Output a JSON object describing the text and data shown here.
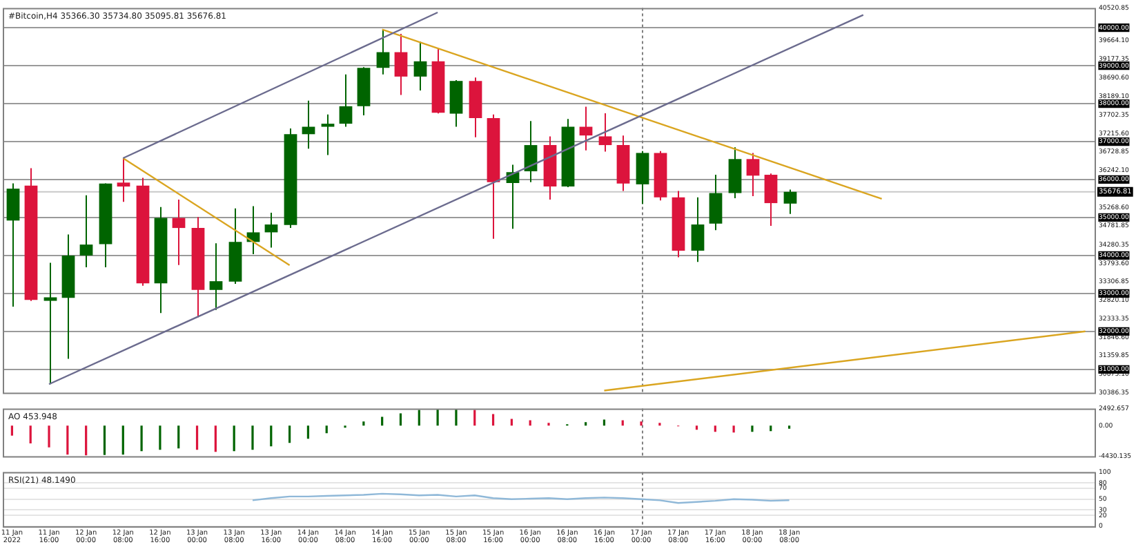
{
  "chart_data": [
    {
      "type": "candlestick",
      "title": "#Bitcoin,H4 35366.30 35734.80 35095.81 35676.81",
      "categories": [
        "11 Jan 2022",
        null,
        "11 Jan 16:00",
        null,
        "12 Jan 00:00",
        null,
        "12 Jan 08:00",
        null,
        "12 Jan 16:00",
        null,
        "13 Jan 00:00",
        null,
        "13 Jan 08:00",
        null,
        "13 Jan 16:00",
        null,
        "14 Jan 00:00",
        null,
        "14 Jan 08:00",
        null,
        "14 Jan 16:00",
        null,
        "15 Jan 00:00",
        null,
        "15 Jan 08:00",
        null,
        "15 Jan 16:00",
        null,
        "16 Jan 00:00",
        null,
        "16 Jan 08:00",
        null,
        "16 Jan 16:00",
        null,
        "17 Jan 00:00",
        null,
        "17 Jan 08:00",
        null,
        "17 Jan 16:00",
        null,
        "18 Jan 00:00",
        null,
        "18 Jan 08:00",
        null,
        null,
        null,
        null,
        null,
        null,
        null,
        null,
        null,
        null,
        null,
        null,
        null,
        null,
        null,
        null
      ],
      "ohlc": [
        [
          34920,
          35900,
          32650,
          35760
        ],
        [
          35840,
          36299,
          32800,
          32828
        ],
        [
          32805,
          33805,
          30609,
          32897
        ],
        [
          32885,
          34552,
          31276,
          34000
        ],
        [
          34000,
          35586,
          33690,
          34287
        ],
        [
          34299,
          35900,
          33690,
          35897
        ],
        [
          35920,
          36563,
          35414,
          35816
        ],
        [
          35839,
          36046,
          33200,
          33264
        ],
        [
          33264,
          35276,
          32483,
          34989
        ],
        [
          34989,
          35471,
          33747,
          34724
        ],
        [
          34724,
          35011,
          32368,
          33092
        ],
        [
          33092,
          34322,
          32563,
          33322
        ],
        [
          33310,
          35241,
          33253,
          34356
        ],
        [
          34356,
          35299,
          34034,
          34609
        ],
        [
          34609,
          35126,
          34207,
          34816
        ],
        [
          34805,
          37345,
          34724,
          37195
        ],
        [
          37195,
          38080,
          36816,
          37391
        ],
        [
          37391,
          37713,
          36644,
          37471
        ],
        [
          37471,
          38770,
          37391,
          37931
        ],
        [
          37931,
          38960,
          37690,
          38943
        ],
        [
          38943,
          39954,
          38770,
          39356
        ],
        [
          39356,
          39839,
          38230,
          38713
        ],
        [
          38713,
          39632,
          38345,
          39115
        ],
        [
          39115,
          39437,
          37740,
          37759
        ],
        [
          37736,
          38620,
          37391,
          38598
        ],
        [
          38598,
          38690,
          37115,
          37621
        ],
        [
          37621,
          37713,
          34437,
          35931
        ],
        [
          35908,
          36391,
          34701,
          36195
        ],
        [
          36218,
          37540,
          35931,
          36908
        ],
        [
          36908,
          37138,
          35471,
          35816
        ],
        [
          35816,
          37598,
          35800,
          37391
        ],
        [
          37391,
          37920,
          36770,
          37161
        ],
        [
          37138,
          37747,
          36736,
          36908
        ],
        [
          36908,
          37161,
          35701,
          35897
        ],
        [
          35874,
          36750,
          35356,
          36701
        ],
        [
          36701,
          36750,
          35450,
          35529
        ],
        [
          35529,
          35701,
          33954,
          34126
        ],
        [
          34126,
          35529,
          33828,
          34816
        ],
        [
          34839,
          36126,
          34667,
          35644
        ],
        [
          35644,
          36851,
          35506,
          36540
        ],
        [
          36540,
          36701,
          35563,
          36103
        ],
        [
          36126,
          36160,
          34782,
          35379
        ],
        [
          35366.3,
          35734.8,
          35095.81,
          35676.81
        ],
        null,
        null,
        null,
        null,
        null,
        null,
        null,
        null,
        null,
        null,
        null,
        null,
        null,
        null,
        null,
        null
      ],
      "colors": [
        "#006400",
        "#dc143c",
        "#006400",
        "#006400",
        "#006400",
        "#006400",
        "#dc143c",
        "#dc143c",
        "#006400",
        "#dc143c",
        "#dc143c",
        "#006400",
        "#006400",
        "#006400",
        "#006400",
        "#006400",
        "#006400",
        "#006400",
        "#006400",
        "#006400",
        "#006400",
        "#dc143c",
        "#006400",
        "#dc143c",
        "#006400",
        "#dc143c",
        "#dc143c",
        "#006400",
        "#006400",
        "#dc143c",
        "#006400",
        "#dc143c",
        "#dc143c",
        "#dc143c",
        "#006400",
        "#dc143c",
        "#dc143c",
        "#006400",
        "#006400",
        "#006400",
        "#dc143c",
        "#dc143c",
        "#006400",
        null,
        null,
        null,
        null,
        null,
        null,
        null,
        null,
        null,
        null,
        null,
        null,
        null,
        null,
        null,
        null
      ],
      "series": [
        {
          "type": "line",
          "color": "#6b6b8e",
          "values": [
            null,
            null,
            null,
            null,
            null,
            null,
            36563,
            null,
            null,
            null,
            null,
            null,
            null,
            null,
            null,
            null,
            null,
            null,
            null,
            null,
            null,
            null,
            null,
            40403,
            null,
            null,
            null,
            null,
            null,
            null,
            null,
            null,
            null,
            null,
            null,
            null,
            null,
            null,
            null,
            null,
            null,
            null,
            null,
            null,
            null,
            null,
            null,
            null,
            null,
            null,
            null,
            null,
            null,
            null,
            null,
            null,
            null,
            null,
            null
          ]
        },
        {
          "type": "line",
          "color": "#6b6b8e",
          "values": [
            null,
            null,
            30609,
            null,
            null,
            null,
            null,
            null,
            null,
            null,
            null,
            null,
            null,
            null,
            null,
            null,
            null,
            null,
            null,
            null,
            null,
            null,
            null,
            null,
            null,
            null,
            null,
            null,
            null,
            null,
            null,
            null,
            null,
            null,
            null,
            null,
            null,
            null,
            null,
            null,
            null,
            null,
            null,
            null,
            null,
            null,
            40337,
            null,
            null,
            null,
            null,
            null,
            null,
            null,
            null,
            null,
            null,
            null,
            null
          ]
        },
        {
          "type": "line",
          "color": "#daa520",
          "values": [
            null,
            null,
            null,
            null,
            null,
            null,
            36563,
            null,
            null,
            null,
            null,
            null,
            null,
            null,
            null,
            33745,
            null,
            null,
            null,
            null,
            null,
            null,
            null,
            null,
            null,
            null,
            null,
            null,
            null,
            null,
            null,
            null,
            null,
            null,
            null,
            null,
            null,
            null,
            null,
            null,
            null,
            null,
            null,
            null,
            null,
            null,
            null,
            null,
            null,
            null,
            null,
            null,
            null,
            null,
            null,
            null,
            null,
            null,
            null
          ]
        },
        {
          "type": "line",
          "color": "#daa520",
          "values": [
            null,
            null,
            null,
            null,
            null,
            null,
            null,
            null,
            null,
            null,
            null,
            null,
            null,
            null,
            null,
            null,
            null,
            null,
            null,
            null,
            39954,
            null,
            null,
            null,
            null,
            null,
            null,
            null,
            null,
            null,
            null,
            null,
            null,
            null,
            null,
            null,
            null,
            null,
            null,
            null,
            null,
            null,
            null,
            null,
            null,
            null,
            null,
            35493,
            null,
            null,
            null,
            null,
            null,
            null,
            null,
            null,
            null,
            null,
            null
          ]
        },
        {
          "type": "line",
          "color": "#daa520",
          "values": [
            null,
            null,
            null,
            null,
            null,
            null,
            null,
            null,
            null,
            null,
            null,
            null,
            null,
            null,
            null,
            null,
            null,
            null,
            null,
            null,
            null,
            null,
            null,
            null,
            null,
            null,
            null,
            null,
            null,
            null,
            null,
            null,
            30440,
            null,
            null,
            null,
            null,
            null,
            null,
            null,
            null,
            null,
            null,
            null,
            null,
            null,
            null,
            null,
            null,
            null,
            null,
            null,
            null,
            null,
            null,
            null,
            null,
            null,
            32000
          ]
        }
      ],
      "ylim": [
        30386.35,
        40520.85
      ],
      "yticks": [
        {
          "value": 40520.85,
          "label": "40520.85"
        },
        {
          "value": 40000,
          "label": "40000.00"
        },
        {
          "value": 39664.1,
          "label": "39664.10"
        },
        {
          "value": 39177.35,
          "label": "39177.35"
        },
        {
          "value": 39000,
          "label": "39000.00"
        },
        {
          "value": 38690.6,
          "label": "38690.60"
        },
        {
          "value": 38189.1,
          "label": "38189.10"
        },
        {
          "value": 38000,
          "label": "38000.00"
        },
        {
          "value": 37702.35,
          "label": "37702.35"
        },
        {
          "value": 37215.6,
          "label": "37215.60"
        },
        {
          "value": 37000,
          "label": "37000.00"
        },
        {
          "value": 36728.85,
          "label": "36728.85"
        },
        {
          "value": 36242.1,
          "label": "36242.10"
        },
        {
          "value": 36000,
          "label": "36000.00"
        },
        {
          "value": 35268.6,
          "label": "35268.60"
        },
        {
          "value": 35000,
          "label": "35000.00"
        },
        {
          "value": 34781.85,
          "label": "34781.85"
        },
        {
          "value": 34280.35,
          "label": "34280.35"
        },
        {
          "value": 34000,
          "label": "34000.00"
        },
        {
          "value": 33793.6,
          "label": "33793.60"
        },
        {
          "value": 33306.85,
          "label": "33306.85"
        },
        {
          "value": 33000,
          "label": "33000.00"
        },
        {
          "value": 32820.1,
          "label": "32820.10"
        },
        {
          "value": 32333.35,
          "label": "32333.35"
        },
        {
          "value": 32000,
          "label": "32000.00"
        },
        {
          "value": 31846.6,
          "label": "31846.60"
        },
        {
          "value": 31359.85,
          "label": "31359.85"
        },
        {
          "value": 31000,
          "label": "31000.00"
        },
        {
          "value": 30873.1,
          "label": "30873.10"
        },
        {
          "value": 30386.35,
          "label": "30386.35"
        }
      ],
      "ref_lines": [
        {
          "axis": "y",
          "value": 35676.81,
          "label": "35676.81",
          "color": "#c8c8c8"
        },
        {
          "axis": "x",
          "value": "17 Jan 00:00",
          "color": "#808080",
          "line_style": "dotted"
        }
      ],
      "grid": "y",
      "tick_labels": "y",
      "legend": false
    },
    {
      "type": "bar",
      "title": "AO 453.948",
      "categories": [
        "11 Jan 2022",
        null,
        "11 Jan 16:00",
        null,
        "12 Jan 00:00",
        null,
        "12 Jan 08:00",
        null,
        "12 Jan 16:00",
        null,
        "13 Jan 00:00",
        null,
        "13 Jan 08:00",
        null,
        "13 Jan 16:00",
        null,
        "14 Jan 00:00",
        null,
        "14 Jan 08:00",
        null,
        "14 Jan 16:00",
        null,
        "15 Jan 00:00",
        null,
        "15 Jan 08:00",
        null,
        "15 Jan 16:00",
        null,
        "16 Jan 00:00",
        null,
        "16 Jan 08:00",
        null,
        "16 Jan 16:00",
        null,
        "17 Jan 00:00",
        null,
        "17 Jan 08:00",
        null,
        "17 Jan 16:00",
        null,
        "18 Jan 00:00",
        null,
        "18 Jan 08:00",
        null,
        null,
        null,
        null,
        null,
        null,
        null,
        null,
        null,
        null,
        null,
        null,
        null,
        null,
        null,
        null
      ],
      "values": [
        -1450,
        -2580,
        -3140,
        -4200,
        -4300,
        -4250,
        -4200,
        -3700,
        -3500,
        -3300,
        -3500,
        -3800,
        -3700,
        -3500,
        -3000,
        -2500,
        -1900,
        -1100,
        -300,
        600,
        1300,
        1800,
        2300,
        2400,
        2400,
        2300,
        1700,
        1000,
        800,
        400,
        200,
        500,
        900,
        800,
        600,
        400,
        -100,
        -600,
        -900,
        -1000,
        -900,
        -800,
        -450,
        null,
        null,
        null,
        null,
        null,
        null,
        null,
        null,
        null,
        null,
        null,
        null,
        null,
        null,
        null,
        null
      ],
      "colors": [
        "#dc143c",
        "#dc143c",
        "#dc143c",
        "#dc143c",
        "#dc143c",
        "#006400",
        "#006400",
        "#006400",
        "#006400",
        "#006400",
        "#dc143c",
        "#dc143c",
        "#006400",
        "#006400",
        "#006400",
        "#006400",
        "#006400",
        "#006400",
        "#006400",
        "#006400",
        "#006400",
        "#006400",
        "#006400",
        "#006400",
        "#006400",
        "#dc143c",
        "#dc143c",
        "#dc143c",
        "#dc143c",
        "#dc143c",
        "#006400",
        "#006400",
        "#006400",
        "#dc143c",
        "#dc143c",
        "#dc143c",
        "#dc143c",
        "#dc143c",
        "#dc143c",
        "#dc143c",
        "#006400",
        "#006400",
        "#006400",
        null,
        null,
        null,
        null,
        null,
        null,
        null,
        null,
        null,
        null,
        null,
        null,
        null,
        null,
        null,
        null
      ],
      "ylim": [
        -4430.135,
        2492.657
      ],
      "yticks": [
        2492.657,
        {
          "value": 0,
          "label": "0.00"
        },
        -4430.135
      ],
      "ref_lines": [
        {
          "axis": "x",
          "value": "17 Jan 00:00",
          "color": "#808080",
          "line_style": "dotted"
        }
      ],
      "tick_labels": "y",
      "legend": false
    },
    {
      "type": "line",
      "title": "RSI(21) 48.1490",
      "categories": [
        "11 Jan 2022",
        null,
        "11 Jan 16:00",
        null,
        "12 Jan 00:00",
        null,
        "12 Jan 08:00",
        null,
        "12 Jan 16:00",
        null,
        "13 Jan 00:00",
        null,
        "13 Jan 08:00",
        null,
        "13 Jan 16:00",
        null,
        "14 Jan 00:00",
        null,
        "14 Jan 08:00",
        null,
        "14 Jan 16:00",
        null,
        "15 Jan 00:00",
        null,
        "15 Jan 08:00",
        null,
        "15 Jan 16:00",
        null,
        "16 Jan 00:00",
        null,
        "16 Jan 08:00",
        null,
        "16 Jan 16:00",
        null,
        "17 Jan 00:00",
        null,
        "17 Jan 08:00",
        null,
        "17 Jan 16:00",
        null,
        "18 Jan 00:00",
        null,
        "18 Jan 08:00",
        null,
        null,
        null,
        null,
        null,
        null,
        null,
        null,
        null,
        null,
        null,
        null,
        null,
        null,
        null,
        null
      ],
      "series": [
        {
          "color": "#8fb8d8",
          "values": [
            null,
            null,
            null,
            null,
            null,
            null,
            null,
            null,
            null,
            null,
            null,
            null,
            null,
            48,
            52,
            55,
            55,
            56,
            57,
            58,
            60,
            59,
            57,
            58,
            55,
            57,
            52,
            50,
            51,
            52,
            50,
            52,
            53,
            52,
            50,
            48,
            43,
            45,
            47,
            50,
            49,
            47,
            48.1,
            null,
            null,
            null,
            null,
            null,
            null,
            null,
            null,
            null,
            null,
            null,
            null,
            null,
            null,
            null,
            null
          ]
        }
      ],
      "ylim": [
        0,
        100
      ],
      "yticks": [
        0,
        20,
        30,
        50,
        70,
        80,
        100
      ],
      "ref_lines": [
        {
          "axis": "x",
          "value": "17 Jan 00:00",
          "color": "#808080",
          "line_style": "dotted"
        }
      ],
      "grid": "y",
      "line_style": "solid",
      "legend": false
    }
  ]
}
